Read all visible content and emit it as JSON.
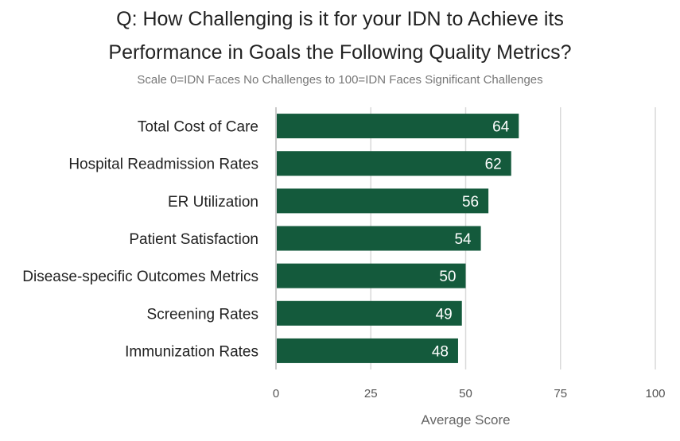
{
  "chart_data": {
    "type": "bar",
    "orientation": "horizontal",
    "title_line_1": "Q: How Challenging is it for your IDN to Achieve its",
    "title_line_2": "Performance in Goals the Following Quality Metrics?",
    "subtitle": "Scale 0=IDN Faces No Challenges to 100=IDN Faces Significant Challenges",
    "categories": [
      "Total Cost of Care",
      "Hospital Readmission Rates",
      "ER Utilization",
      "Patient Satisfaction",
      "Disease-specific Outcomes Metrics",
      "Screening Rates",
      "Immunization Rates"
    ],
    "values": [
      64,
      62,
      56,
      54,
      50,
      49,
      48
    ],
    "xlabel": "Average Score",
    "ylabel": "",
    "xlim": [
      0,
      100
    ],
    "xticks": [
      0,
      25,
      50,
      75,
      100
    ],
    "grid": true,
    "data_labels": true,
    "bar_color": "#145A3C",
    "label_color": "#ffffff",
    "legend": "none"
  }
}
